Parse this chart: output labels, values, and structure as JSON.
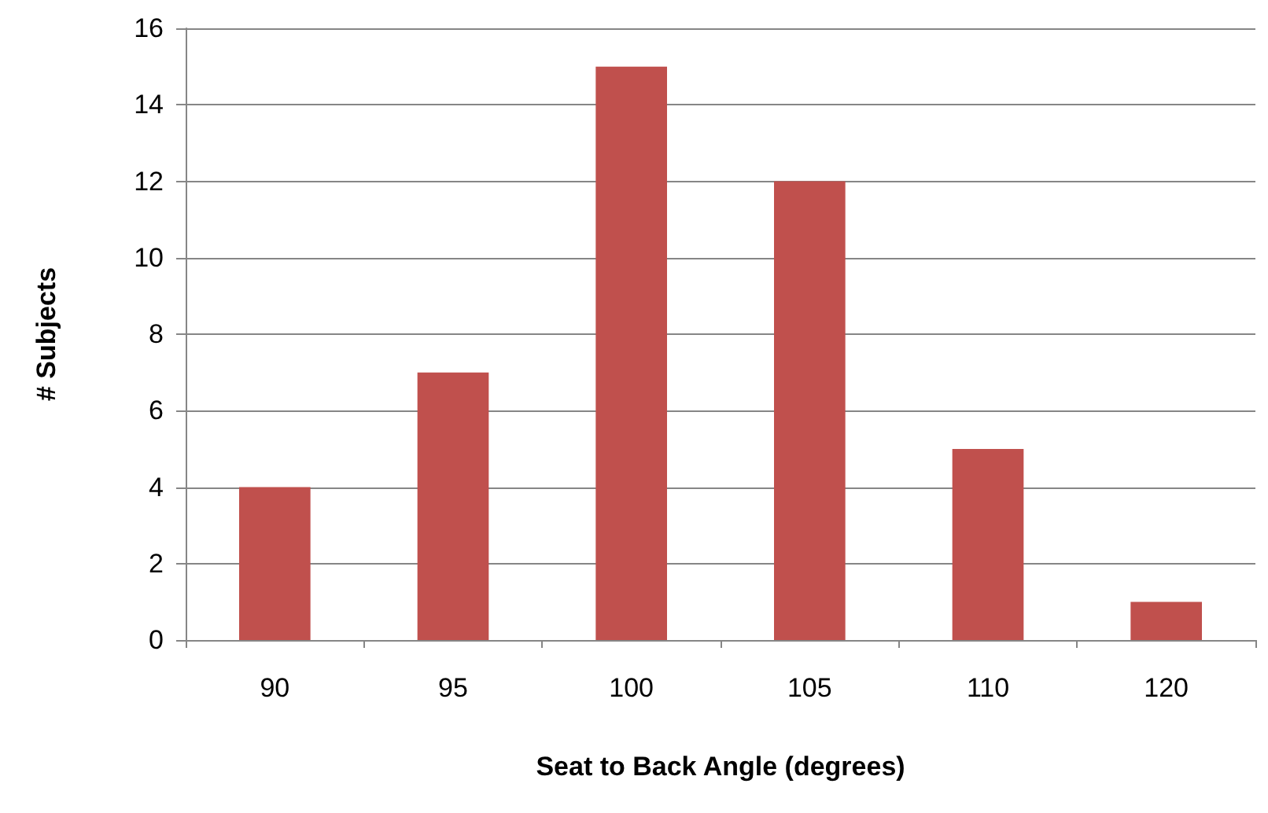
{
  "chart_data": {
    "type": "bar",
    "xlabel": "Seat to Back Angle (degrees)",
    "ylabel": "# Subjects",
    "categories": [
      "90",
      "95",
      "100",
      "105",
      "110",
      "120"
    ],
    "values": [
      4,
      7,
      15,
      12,
      5,
      1
    ],
    "color": "#c0504d",
    "ylim": [
      0,
      16
    ],
    "yticks": [
      0,
      2,
      4,
      6,
      8,
      10,
      12,
      14,
      16
    ],
    "grid": "y"
  }
}
